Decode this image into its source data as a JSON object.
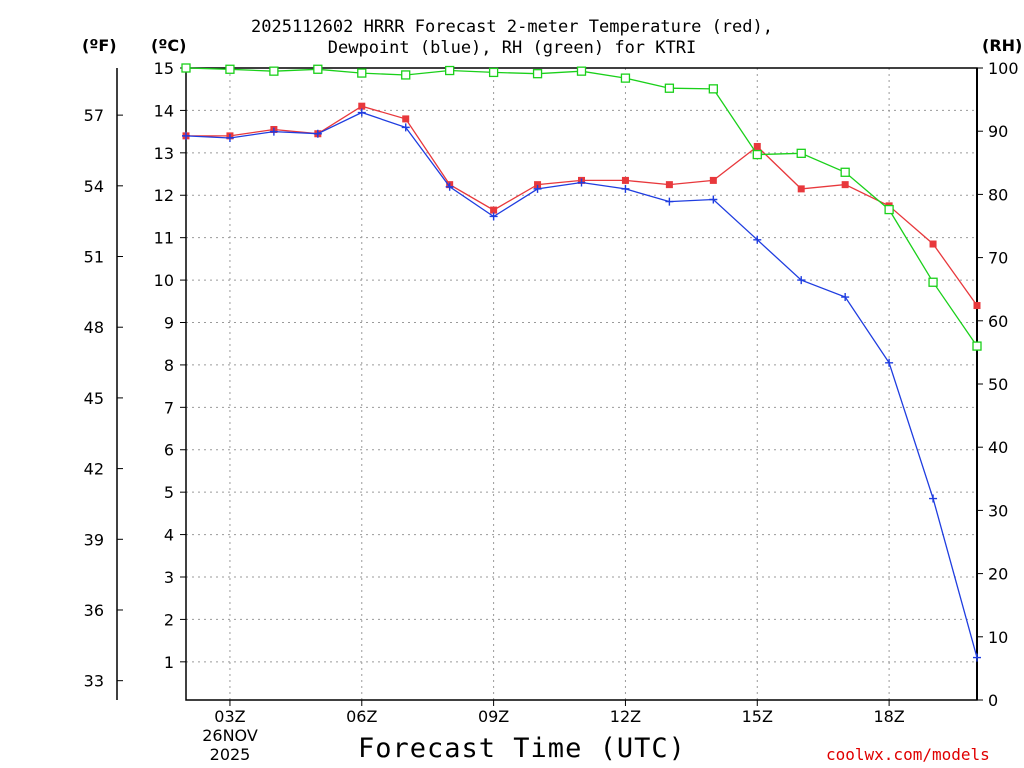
{
  "chart_data": {
    "type": "line",
    "title_line1": "2025112602 HRRR Forecast 2-meter Temperature (red),",
    "title_line2": "Dewpoint (blue), RH (green) for KTRI",
    "xlabel": "Forecast Time (UTC)",
    "credit": "coolwx.com/models",
    "unit_labels": {
      "fahrenheit": "(ºF)",
      "celsius": "(ºC)",
      "rh": "(RH)"
    },
    "date_label": {
      "line1": "26NOV",
      "line2": "2025"
    },
    "x_ticks": [
      {
        "hour": 3,
        "label": "03Z"
      },
      {
        "hour": 6,
        "label": "06Z"
      },
      {
        "hour": 9,
        "label": "09Z"
      },
      {
        "hour": 12,
        "label": "12Z"
      },
      {
        "hour": 15,
        "label": "15Z"
      },
      {
        "hour": 18,
        "label": "18Z"
      }
    ],
    "x_range": [
      2,
      20
    ],
    "celsius_range": [
      0.1,
      15
    ],
    "celsius_ticks": [
      1,
      2,
      3,
      4,
      5,
      6,
      7,
      8,
      9,
      10,
      11,
      12,
      13,
      14,
      15
    ],
    "fahrenheit_ticks": [
      33,
      36,
      39,
      42,
      45,
      48,
      51,
      54,
      57
    ],
    "rh_range": [
      0,
      100
    ],
    "rh_ticks": [
      0,
      10,
      20,
      30,
      40,
      50,
      60,
      70,
      80,
      90,
      100
    ],
    "hours": [
      2,
      3,
      4,
      5,
      6,
      7,
      8,
      9,
      10,
      11,
      12,
      13,
      14,
      15,
      16,
      17,
      18,
      19,
      20
    ],
    "series": [
      {
        "name": "Temperature",
        "color": "#e8383c",
        "marker": "filled-square",
        "values": [
          13.4,
          13.4,
          13.55,
          13.45,
          14.1,
          13.8,
          12.25,
          11.65,
          12.25,
          12.35,
          12.35,
          12.25,
          12.35,
          13.15,
          12.15,
          12.25,
          11.75,
          10.85,
          9.4
        ]
      },
      {
        "name": "Dewpoint",
        "color": "#1f3de0",
        "marker": "plus",
        "values": [
          13.4,
          13.35,
          13.5,
          13.45,
          13.95,
          13.6,
          12.2,
          11.5,
          12.15,
          12.3,
          12.15,
          11.85,
          11.9,
          10.95,
          10.0,
          9.6,
          8.05,
          4.85,
          1.1
        ]
      },
      {
        "name": "RH",
        "color": "#1ad01a",
        "marker": "open-square",
        "axis": "rh",
        "values": [
          100,
          99.8,
          99.5,
          99.8,
          99.2,
          98.9,
          99.6,
          99.3,
          99.1,
          99.5,
          98.4,
          96.8,
          96.7,
          86.3,
          86.5,
          83.5,
          77.6,
          66.1,
          56
        ]
      }
    ]
  }
}
